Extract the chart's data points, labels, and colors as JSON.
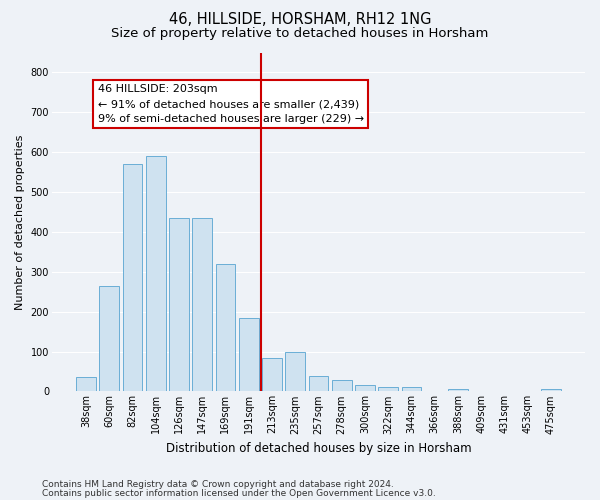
{
  "title": "46, HILLSIDE, HORSHAM, RH12 1NG",
  "subtitle": "Size of property relative to detached houses in Horsham",
  "xlabel": "Distribution of detached houses by size in Horsham",
  "ylabel": "Number of detached properties",
  "categories": [
    "38sqm",
    "60sqm",
    "82sqm",
    "104sqm",
    "126sqm",
    "147sqm",
    "169sqm",
    "191sqm",
    "213sqm",
    "235sqm",
    "257sqm",
    "278sqm",
    "300sqm",
    "322sqm",
    "344sqm",
    "366sqm",
    "388sqm",
    "409sqm",
    "431sqm",
    "453sqm",
    "475sqm"
  ],
  "values": [
    37,
    265,
    570,
    590,
    435,
    435,
    320,
    185,
    85,
    100,
    38,
    28,
    15,
    12,
    10,
    0,
    7,
    0,
    0,
    0,
    7
  ],
  "bar_color": "#cfe2f0",
  "bar_edge_color": "#6aaed6",
  "vline_color": "#cc0000",
  "vline_x_index": 8,
  "annotation_text": "46 HILLSIDE: 203sqm\n← 91% of detached houses are smaller (2,439)\n9% of semi-detached houses are larger (229) →",
  "annotation_box_color": "#ffffff",
  "annotation_box_edge_color": "#cc0000",
  "ylim": [
    0,
    850
  ],
  "yticks": [
    0,
    100,
    200,
    300,
    400,
    500,
    600,
    700,
    800
  ],
  "footer1": "Contains HM Land Registry data © Crown copyright and database right 2024.",
  "footer2": "Contains public sector information licensed under the Open Government Licence v3.0.",
  "bg_color": "#eef2f7",
  "plot_bg_color": "#eef2f7",
  "grid_color": "#ffffff",
  "title_fontsize": 10.5,
  "subtitle_fontsize": 9.5,
  "xlabel_fontsize": 8.5,
  "ylabel_fontsize": 8,
  "tick_fontsize": 7,
  "annotation_fontsize": 8,
  "footer_fontsize": 6.5
}
